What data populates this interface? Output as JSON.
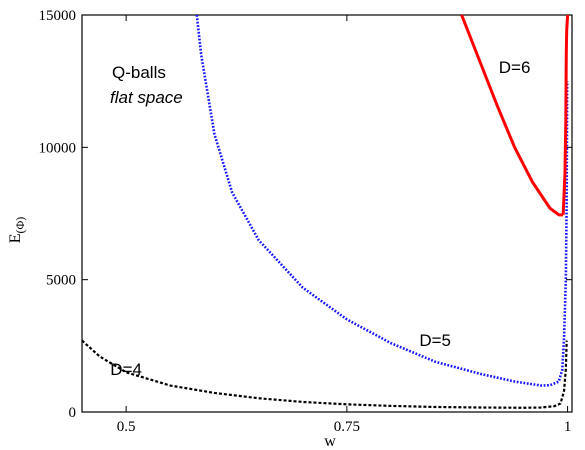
{
  "chart_data": {
    "type": "line",
    "title": "",
    "xlabel": "w",
    "ylabel": "E",
    "ylabel_sub": "(Φ)",
    "xlim": [
      0.45,
      1.005
    ],
    "ylim": [
      0,
      15000
    ],
    "xticks": [
      0.5,
      0.75,
      1
    ],
    "xtick_labels": [
      "0.5",
      "0.75",
      "1"
    ],
    "yticks": [
      0,
      5000,
      10000,
      15000
    ],
    "ytick_labels": [
      "0",
      "5000",
      "10000",
      "15000"
    ],
    "grid": false,
    "legend": "none",
    "annotations": {
      "heading": "Q-balls",
      "subheading": "flat space"
    },
    "series": [
      {
        "name": "D=4",
        "color": "#000000",
        "style": "dashed",
        "label_at": [
          0.5,
          1400
        ],
        "segments": [
          [
            [
              0.45,
              2700
            ],
            [
              0.47,
              2100
            ],
            [
              0.5,
              1500
            ],
            [
              0.55,
              1000
            ],
            [
              0.6,
              720
            ],
            [
              0.65,
              520
            ],
            [
              0.7,
              380
            ],
            [
              0.75,
              290
            ],
            [
              0.8,
              230
            ],
            [
              0.85,
              190
            ],
            [
              0.9,
              170
            ],
            [
              0.95,
              160
            ],
            [
              0.97,
              170
            ],
            [
              0.985,
              220
            ],
            [
              0.992,
              320
            ],
            [
              0.996,
              800
            ],
            [
              0.998,
              1600
            ],
            [
              0.999,
              2700
            ]
          ]
        ]
      },
      {
        "name": "D=5",
        "color": "#1a1aff",
        "style": "dotted",
        "label_at": [
          0.85,
          2500
        ],
        "segments": [
          [
            [
              0.58,
              15000
            ],
            [
              0.585,
              13500
            ],
            [
              0.6,
              10500
            ],
            [
              0.62,
              8300
            ],
            [
              0.65,
              6500
            ],
            [
              0.7,
              4700
            ],
            [
              0.75,
              3500
            ],
            [
              0.8,
              2600
            ],
            [
              0.85,
              1900
            ],
            [
              0.9,
              1450
            ],
            [
              0.94,
              1150
            ],
            [
              0.97,
              1000
            ],
            [
              0.98,
              1010
            ],
            [
              0.99,
              1150
            ],
            [
              0.994,
              1600
            ],
            [
              0.996,
              2800
            ],
            [
              0.998,
              5000
            ],
            [
              0.999,
              8000
            ],
            [
              0.9995,
              12500
            ]
          ]
        ]
      },
      {
        "name": "D=6",
        "color": "#ff0000",
        "style": "solid",
        "label_at": [
          0.94,
          12800
        ],
        "segments": [
          [
            [
              0.88,
              15000
            ],
            [
              0.9,
              13300
            ],
            [
              0.92,
              11600
            ],
            [
              0.94,
              10000
            ],
            [
              0.96,
              8700
            ],
            [
              0.98,
              7700
            ],
            [
              0.99,
              7450
            ],
            [
              0.995,
              7450
            ]
          ],
          [
            [
              0.995,
              7450
            ],
            [
              0.997,
              9000
            ],
            [
              0.998,
              11000
            ],
            [
              0.9985,
              13500
            ],
            [
              0.999,
              14400
            ],
            [
              1.0,
              15000
            ]
          ]
        ]
      }
    ]
  }
}
